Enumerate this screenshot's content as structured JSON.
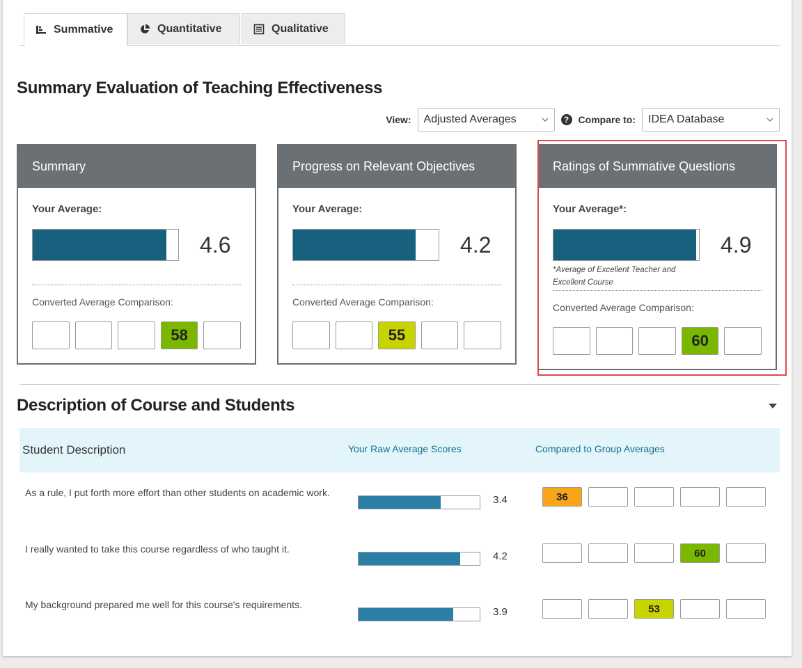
{
  "tabs": [
    {
      "label": "Summative",
      "icon": "bar-chart-icon",
      "active": true
    },
    {
      "label": "Quantitative",
      "icon": "pie-chart-icon",
      "active": false
    },
    {
      "label": "Qualitative",
      "icon": "document-icon",
      "active": false
    }
  ],
  "summary_section": {
    "title": "Summary Evaluation of Teaching Effectiveness",
    "view_label": "View:",
    "view_value": "Adjusted Averages",
    "compare_label": "Compare to:",
    "compare_value": "IDEA Database",
    "help_icon": "?"
  },
  "cards": [
    {
      "title": "Summary",
      "avg_label": "Your Average:",
      "avg_value": "4.6",
      "avg_fill": 0.92,
      "footnote": "",
      "conv_label": "Converted Average Comparison:",
      "boxes": [
        "",
        "",
        "",
        "58",
        ""
      ],
      "box_colors": [
        "",
        "",
        "",
        "green",
        ""
      ]
    },
    {
      "title": "Progress on Relevant Objectives",
      "avg_label": "Your Average:",
      "avg_value": "4.2",
      "avg_fill": 0.84,
      "footnote": "",
      "conv_label": "Converted Average Comparison:",
      "boxes": [
        "",
        "",
        "55",
        "",
        ""
      ],
      "box_colors": [
        "",
        "",
        "lime",
        "",
        ""
      ]
    },
    {
      "title": "Ratings of Summative Questions",
      "avg_label": "Your Average*:",
      "avg_value": "4.9",
      "avg_fill": 0.98,
      "footnote": "*Average of Excellent Teacher and Excellent Course",
      "conv_label": "Converted Average Comparison:",
      "boxes": [
        "",
        "",
        "",
        "60",
        ""
      ],
      "box_colors": [
        "",
        "",
        "",
        "green",
        ""
      ]
    }
  ],
  "description_section": {
    "title": "Description of Course and Students",
    "col_student": "Student Description",
    "col_raw": "Your Raw Average Scores",
    "col_group": "Compared to Group Averages",
    "rows": [
      {
        "text": "As a rule, I put forth more effort than other students on academic work.",
        "score": "3.4",
        "fill": 0.68,
        "boxes": [
          "36",
          "",
          "",
          "",
          ""
        ],
        "box_colors": [
          "orange",
          "",
          "",
          "",
          ""
        ]
      },
      {
        "text": "I really wanted to take this course regardless of who taught it.",
        "score": "4.2",
        "fill": 0.84,
        "boxes": [
          "",
          "",
          "",
          "60",
          ""
        ],
        "box_colors": [
          "",
          "",
          "",
          "green",
          ""
        ]
      },
      {
        "text": "My background prepared me well for this course's requirements.",
        "score": "3.9",
        "fill": 0.78,
        "boxes": [
          "",
          "",
          "53",
          "",
          ""
        ],
        "box_colors": [
          "",
          "",
          "lime",
          "",
          ""
        ]
      }
    ]
  }
}
